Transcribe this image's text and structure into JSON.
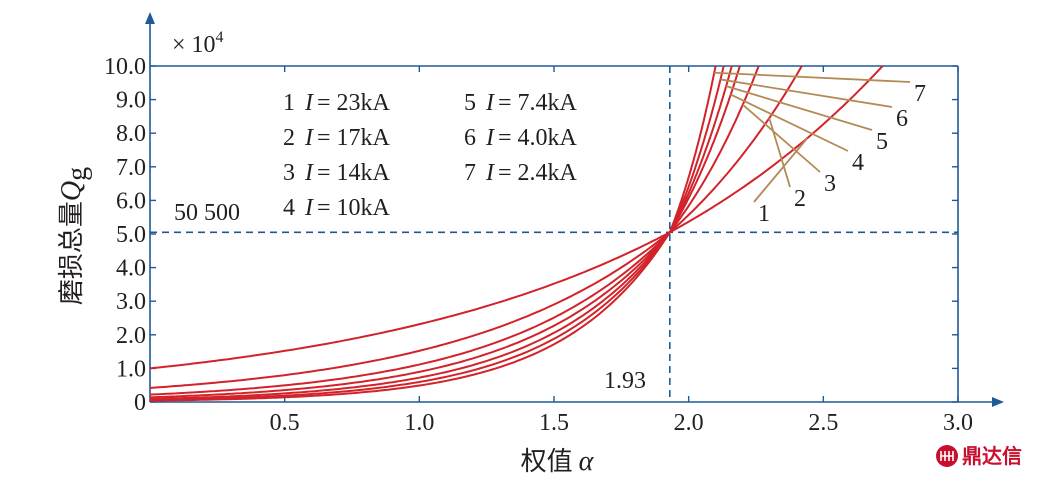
{
  "chart_data": {
    "type": "line",
    "title": "",
    "xlabel": "权值",
    "xlabel_symbol": "α",
    "ylabel": "磨损总量",
    "ylabel_symbol": "Q",
    "ylabel_subscript": "g",
    "y_multiplier_label": "× 10",
    "y_multiplier_exp": "4",
    "xlim": [
      0,
      3.0
    ],
    "ylim": [
      0,
      10.0
    ],
    "x_ticks": [
      "0.5",
      "1.0",
      "1.5",
      "2.0",
      "2.5",
      "3.0"
    ],
    "y_ticks": [
      "0",
      "1.0",
      "2.0",
      "3.0",
      "4.0",
      "5.0",
      "6.0",
      "7.0",
      "8.0",
      "9.0",
      "10.0"
    ],
    "grid": false,
    "ref_x": 1.93,
    "ref_y": 5.05,
    "ref_x_label": "1.93",
    "ref_y_label": "50 500",
    "legend_position": "top-left",
    "curve_color": "#d2232a",
    "leader_color": "#b38a54",
    "axis_color": "#1e5a96",
    "series": [
      {
        "name": "1",
        "legend_num": "1",
        "legend_var": "I",
        "legend_value": "= 23kA",
        "y0": 1.0,
        "x_at_top": 2.72
      },
      {
        "name": "2",
        "legend_num": "2",
        "legend_var": "I",
        "legend_value": "= 17kA",
        "y0": 0.42,
        "x_at_top": 2.42
      },
      {
        "name": "3",
        "legend_num": "3",
        "legend_var": "I",
        "legend_value": "= 14kA",
        "y0": 0.22,
        "x_at_top": 2.26
      },
      {
        "name": "4",
        "legend_num": "4",
        "legend_var": "I",
        "legend_value": "= 10kA",
        "y0": 0.14,
        "x_at_top": 2.19
      },
      {
        "name": "5",
        "legend_num": "5",
        "legend_var": "I",
        "legend_value": "= 7.4kA",
        "y0": 0.09,
        "x_at_top": 2.16
      },
      {
        "name": "6",
        "legend_num": "6",
        "legend_var": "I",
        "legend_value": "= 4.0kA",
        "y0": 0.06,
        "x_at_top": 2.13
      },
      {
        "name": "7",
        "legend_num": "7",
        "legend_var": "I",
        "legend_value": "= 2.4kA",
        "y0": 0.04,
        "x_at_top": 2.1
      }
    ]
  },
  "watermark": {
    "text": "鼎达信"
  }
}
